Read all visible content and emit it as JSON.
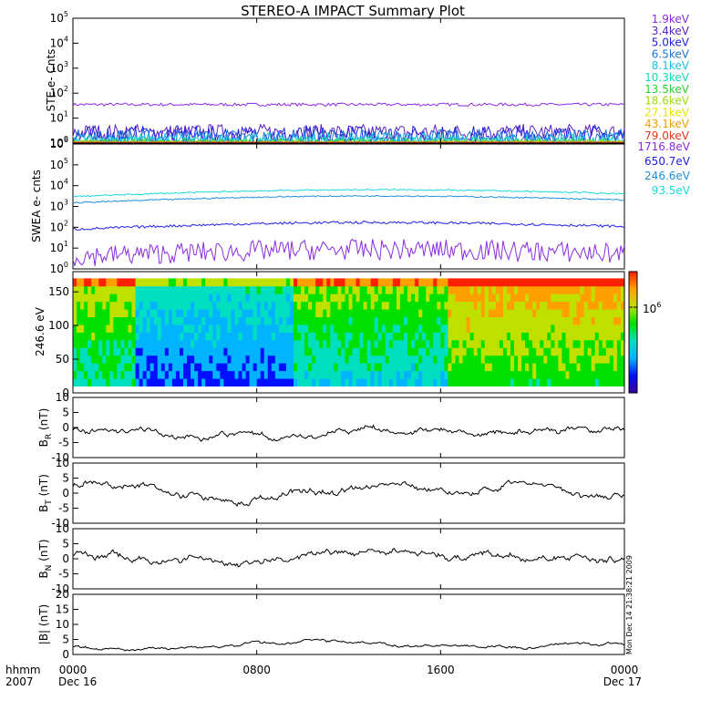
{
  "title": "STEREO-A IMPACT Summary Plot",
  "footer": {
    "left_top": "hhmm",
    "left_bottom": "2007",
    "x_ticks": [
      "0000",
      "0800",
      "1600",
      "0000"
    ],
    "date_start": "Dec 16",
    "date_end": "Dec 17",
    "stamp": "Mon Dec 14 21:38:21 2009"
  },
  "colorbar": {
    "tick_label": "10",
    "tick_exp": "6"
  },
  "chart_data": [
    {
      "id": "ste",
      "type": "line",
      "ylabel": "STE e- Cnts",
      "yscale": "log",
      "ylim": [
        1,
        100000
      ],
      "y_ticks": [
        {
          "base": "10",
          "exp": "0"
        },
        {
          "base": "10",
          "exp": "1"
        },
        {
          "base": "10",
          "exp": "2"
        },
        {
          "base": "10",
          "exp": "3"
        },
        {
          "base": "10",
          "exp": "4"
        },
        {
          "base": "10",
          "exp": "5"
        }
      ],
      "x": [
        "0000",
        "0800",
        "1600",
        "0000"
      ],
      "series": [
        {
          "name": "1.9keV",
          "color": "#8a2be2",
          "level": 35,
          "noise": 0.06
        },
        {
          "name": "3.4keV",
          "color": "#5a1fbf",
          "level": 2.6,
          "noise": 0.35
        },
        {
          "name": "5.0keV",
          "color": "#1e1ee6",
          "level": 2.0,
          "noise": 0.4
        },
        {
          "name": "6.5keV",
          "color": "#1f78d0",
          "level": 1.6,
          "noise": 0.35
        },
        {
          "name": "8.1keV",
          "color": "#19c3e6",
          "level": 1.4,
          "noise": 0.25
        },
        {
          "name": "10.3keV",
          "color": "#12dcb4",
          "level": 1.25,
          "noise": 0.15
        },
        {
          "name": "13.5keV",
          "color": "#2ed12e",
          "level": 1.15,
          "noise": 0.1
        },
        {
          "name": "18.6keV",
          "color": "#9edb14",
          "level": 1.1,
          "noise": 0.08
        },
        {
          "name": "27.1keV",
          "color": "#e6e600",
          "level": 1.05,
          "noise": 0.05
        },
        {
          "name": "43.1keV",
          "color": "#f0a000",
          "level": 1.03,
          "noise": 0.03
        },
        {
          "name": "79.0keV",
          "color": "#e8361e",
          "level": 1.02,
          "noise": 0.02
        }
      ]
    },
    {
      "id": "swea",
      "type": "line",
      "ylabel": "SWEA e- cnts",
      "yscale": "log",
      "ylim": [
        1,
        1000000
      ],
      "y_ticks": [
        {
          "base": "10",
          "exp": "0"
        },
        {
          "base": "10",
          "exp": "1"
        },
        {
          "base": "10",
          "exp": "2"
        },
        {
          "base": "10",
          "exp": "3"
        },
        {
          "base": "10",
          "exp": "4"
        },
        {
          "base": "10",
          "exp": "5"
        },
        {
          "base": "10",
          "exp": "6"
        }
      ],
      "x": [
        "0000",
        "0800",
        "1600",
        "0000"
      ],
      "series": [
        {
          "name": "1716.8eV",
          "color": "#8a2be2",
          "level": 4,
          "noise": 0.5
        },
        {
          "name": "650.7eV",
          "color": "#1e1ee6",
          "level": 80,
          "noise": 0.06
        },
        {
          "name": "246.6eV",
          "color": "#1f8fdc",
          "level": 1500,
          "noise": 0.03
        },
        {
          "name": "93.5eV",
          "color": "#19d8dc",
          "level": 3000,
          "noise": 0.03
        }
      ]
    },
    {
      "id": "pad",
      "type": "heatmap",
      "ylabel": "246.6 eV",
      "ylim": [
        0,
        180
      ],
      "y_ticks": [
        "0",
        "50",
        "100",
        "150"
      ],
      "x": [
        "0000",
        "0800",
        "1600",
        "0000"
      ],
      "color_scale": [
        "#3c00a0",
        "#0010ff",
        "#00b4ff",
        "#00e0c0",
        "#00e000",
        "#c0e000",
        "#ffa000",
        "#ff2000"
      ]
    },
    {
      "id": "br",
      "type": "line",
      "ylabel": "B",
      "ylabel_sub": "R",
      "ylabel_unit": " (nT)",
      "ylim": [
        -10,
        10
      ],
      "y_ticks": [
        "-10",
        "-5",
        "0",
        "5",
        "10"
      ],
      "x": [
        "0000",
        "0800",
        "1600",
        "0000"
      ],
      "series": [
        {
          "name": "",
          "color": "#000000",
          "level": -1.5,
          "noise": 0.6
        }
      ]
    },
    {
      "id": "bt",
      "type": "line",
      "ylabel": "B",
      "ylabel_sub": "T",
      "ylabel_unit": " (nT)",
      "ylim": [
        -10,
        10
      ],
      "y_ticks": [
        "-10",
        "-5",
        "0",
        "5",
        "10"
      ],
      "x": [
        "0000",
        "0800",
        "1600",
        "0000"
      ],
      "series": [
        {
          "name": "",
          "color": "#000000",
          "level": 1.0,
          "noise": 0.7
        }
      ]
    },
    {
      "id": "bn",
      "type": "line",
      "ylabel": "B",
      "ylabel_sub": "N",
      "ylabel_unit": " (nT)",
      "ylim": [
        -10,
        10
      ],
      "y_ticks": [
        "-10",
        "-5",
        "0",
        "5",
        "10"
      ],
      "x": [
        "0000",
        "0800",
        "1600",
        "0000"
      ],
      "series": [
        {
          "name": "",
          "color": "#000000",
          "level": 0.5,
          "noise": 0.7
        }
      ]
    },
    {
      "id": "bmag",
      "type": "line",
      "ylabel": "|B| (nT)",
      "ylim": [
        0,
        20
      ],
      "y_ticks": [
        "0",
        "5",
        "10",
        "15",
        "20"
      ],
      "x": [
        "0000",
        "0800",
        "1600",
        "0000"
      ],
      "series": [
        {
          "name": "",
          "color": "#000000",
          "level": 3.0,
          "noise": 0.3
        }
      ]
    }
  ]
}
